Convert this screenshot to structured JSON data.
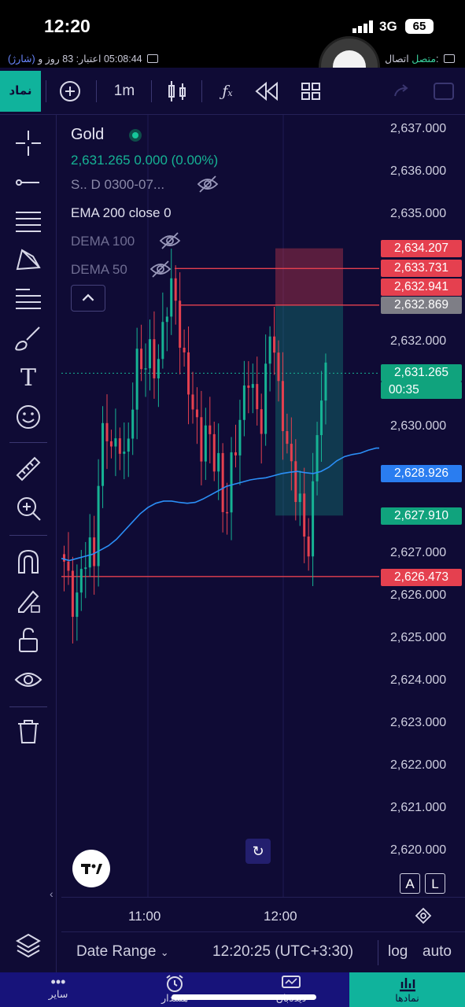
{
  "status_bar": {
    "time": "12:20",
    "network": "3G",
    "battery": "65"
  },
  "info_bar": {
    "charge_label": "(شارژ)",
    "time_remaining": "05:08:44",
    "credit_text": "اعتبار: 83 روز و",
    "connection_label": "اتصال:",
    "connection_status": "متصل"
  },
  "toolbar": {
    "symbol_tab": "نماد",
    "interval": "1m",
    "icons": [
      "add-icon",
      "candles-icon",
      "indicators-icon",
      "replay-rewind-icon",
      "layout-grid-icon",
      "undo-icon",
      "redo-icon",
      "fullscreen-icon"
    ]
  },
  "legend": {
    "symbol": "Gold",
    "price": "2,631.265",
    "change": "0.000 (0.00%)",
    "session": "S.. D 0300-07...",
    "ema": "EMA 200 close 0",
    "dema100": "DEMA 100",
    "dema50": "DEMA 50"
  },
  "price_axis": {
    "ticks": [
      "2,637.000",
      "2,636.000",
      "2,635.000",
      "2,632.000",
      "2,630.000",
      "2,627.000",
      "2,626.000",
      "2,625.000",
      "2,624.000",
      "2,623.000",
      "2,622.000",
      "2,621.000",
      "2,620.000"
    ],
    "labels": [
      {
        "text": "2,634.207",
        "color": "#e5404f"
      },
      {
        "text": "2,633.731",
        "color": "#e5404f"
      },
      {
        "text": "2,632.941",
        "color": "#e5404f"
      },
      {
        "text": "2,632.869",
        "color": "#7e7e86"
      },
      {
        "text": "2,631.265",
        "color": "#10a37d"
      },
      {
        "text": "00:35",
        "color": "#10a37d"
      },
      {
        "text": "2,628.926",
        "color": "#2a7df0"
      },
      {
        "text": "2,627.910",
        "color": "#10a37d"
      },
      {
        "text": "2,626.473",
        "color": "#e5404f"
      }
    ]
  },
  "time_axis": {
    "labels": [
      "11:00",
      "12:00"
    ]
  },
  "bottom_bar": {
    "date_range": "Date Range",
    "clock": "12:20:25 (UTC+3:30)",
    "log": "log",
    "auto": "auto"
  },
  "buttons": {
    "a": "A",
    "l": "L"
  },
  "nav": {
    "items": [
      {
        "label": "سایر",
        "icon": "more-dots-icon"
      },
      {
        "label": "هشدار",
        "icon": "alarm-clock-icon"
      },
      {
        "label": "دیده‌بان",
        "icon": "monitor-chart-icon"
      },
      {
        "label": "نمادها",
        "icon": "bar-chart-icon"
      }
    ]
  },
  "tools": [
    "crosshair-icon",
    "trendline-icon",
    "fib-retracement-icon",
    "pattern-icon",
    "prediction-icon",
    "brush-icon",
    "text-icon",
    "emoji-icon",
    "ruler-icon",
    "zoom-in-icon",
    "magnet-icon",
    "lock-drawing-icon",
    "unlock-icon",
    "eye-icon",
    "trash-icon",
    "layers-icon"
  ],
  "chart_data": {
    "type": "candlestick",
    "series": [
      {
        "name": "EMA 200 close 0",
        "color": "#2b8ff7",
        "x": [
          0,
          10,
          20,
          30,
          40,
          50,
          60,
          70,
          80,
          90,
          100,
          110,
          120,
          130,
          140,
          150,
          160,
          170,
          180,
          190,
          200,
          210,
          220,
          230,
          240,
          250,
          260,
          270,
          280,
          290,
          300,
          310,
          320,
          330,
          340,
          350,
          360,
          370,
          380,
          390,
          400,
          404
        ],
        "y": [
          2626.9,
          2626.85,
          2626.9,
          2626.95,
          2627.0,
          2627.1,
          2627.2,
          2627.35,
          2627.55,
          2627.75,
          2627.95,
          2628.1,
          2628.2,
          2628.25,
          2628.25,
          2628.22,
          2628.2,
          2628.22,
          2628.3,
          2628.4,
          2628.5,
          2628.6,
          2628.65,
          2628.7,
          2628.75,
          2628.78,
          2628.8,
          2628.85,
          2628.9,
          2628.93,
          2628.95,
          2628.92,
          2628.9,
          2628.95,
          2629.05,
          2629.2,
          2629.3,
          2629.35,
          2629.38,
          2629.45,
          2629.5,
          2629.5
        ]
      }
    ],
    "levels": [
      2633.731,
      2632.869,
      2626.473
    ],
    "last_price": 2631.265,
    "position_box": {
      "entry": 2632.869,
      "stop": 2634.207,
      "target": 2627.91
    },
    "y_range": [
      2619.6,
      2637.2
    ],
    "x_labels": [
      "11:00",
      "12:00"
    ]
  }
}
